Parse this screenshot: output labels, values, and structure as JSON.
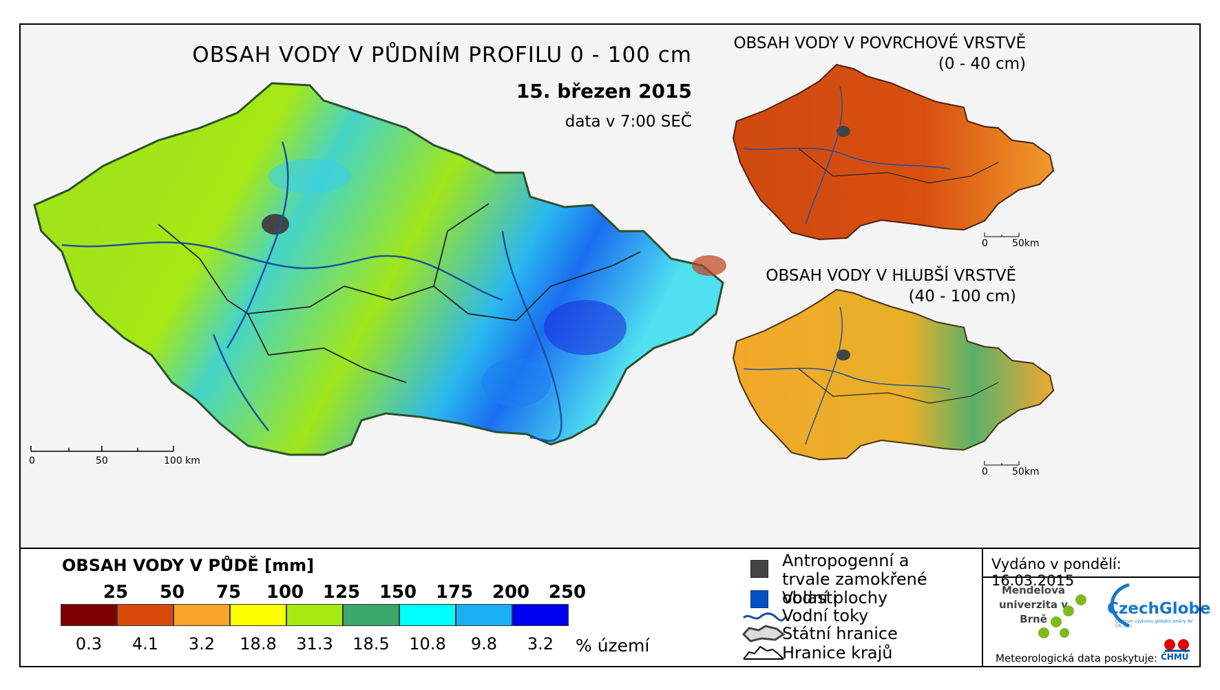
{
  "main_map": {
    "title": "OBSAH VODY V PŮDNÍM PROFILU 0 - 100 cm",
    "date": "15. březen 2015",
    "time": "data v 7:00 SEČ",
    "scale_labels": [
      "0",
      "50",
      "100 km"
    ]
  },
  "surface_map": {
    "title": "OBSAH VODY V POVRCHOVÉ VRSTVĚ",
    "subtitle": "(0 - 40 cm)",
    "scale_labels": [
      "0",
      "50km"
    ]
  },
  "deep_map": {
    "title": "OBSAH VODY V HLUBŠÍ VRSTVĚ",
    "subtitle": "(40 - 100 cm)",
    "scale_labels": [
      "0",
      "50km"
    ]
  },
  "legend": {
    "title": "OBSAH VODY V PŮDĚ [mm]",
    "bounds": [
      "25",
      "50",
      "75",
      "100",
      "125",
      "150",
      "175",
      "200",
      "250"
    ],
    "colors": [
      "#7b0000",
      "#d74a0a",
      "#f8a528",
      "#ffff00",
      "#a5ea10",
      "#3aa86a",
      "#00ffff",
      "#19b0f5",
      "#0000f0"
    ],
    "percentages": [
      "0.3",
      "4.1",
      "3.2",
      "18.8",
      "31.3",
      "18.5",
      "10.8",
      "9.8",
      "3.2"
    ],
    "percent_unit": "% území"
  },
  "key": {
    "anthropogenic": "Antropogenní a trvale zamokřené oblasti",
    "water_bodies": "Vodní plochy",
    "rivers": "Vodní toky",
    "state_border": "Státní hranice",
    "region_border": "Hranice krajů"
  },
  "footer": {
    "issued": "Vydáno v pondělí: 16.03.2015",
    "mendel_logo": "Mendelova univerzita v Brně",
    "czechglobe_logo": "CzechGlobe",
    "czechglobe_sub": "Centrum výzkumu globální změny AV ČR, v.v.i.",
    "meteo": "Meteorologická data poskytuje:",
    "chmu_logo": "ČHMÚ"
  }
}
